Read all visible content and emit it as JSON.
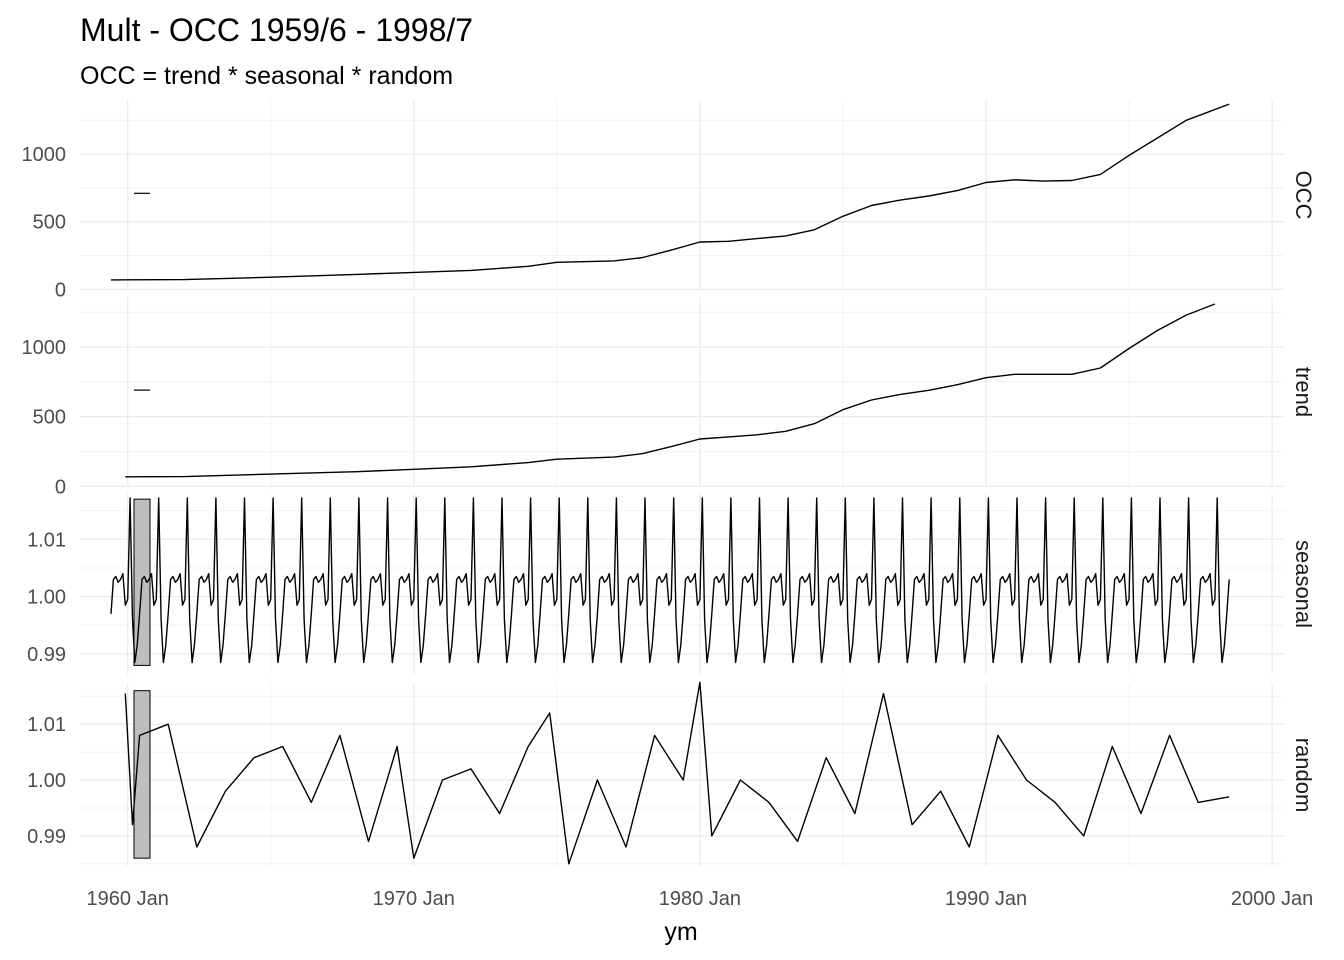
{
  "chart_data": {
    "type": "line",
    "title": "Mult - OCC 1959/6 - 1998/7",
    "subtitle": "OCC = trend * seasonal * random",
    "xlabel": "ym",
    "x_ticks": [
      "1960 Jan",
      "1970 Jan",
      "1980 Jan",
      "1990 Jan",
      "2000 Jan"
    ],
    "xlim": [
      "1958-05",
      "2000-06"
    ],
    "panels": [
      {
        "name": "OCC",
        "ylim": [
          -5,
          1400
        ],
        "y_ticks": [
          {
            "v": 0,
            "label": "0"
          },
          {
            "v": 500,
            "label": "500"
          },
          {
            "v": 1000,
            "label": "1000"
          }
        ],
        "range_bar": [
          700,
          720
        ],
        "points": [
          [
            "1959-06",
            70
          ],
          [
            "1962-01",
            72
          ],
          [
            "1965-01",
            90
          ],
          [
            "1968-01",
            110
          ],
          [
            "1970-01",
            125
          ],
          [
            "1972-01",
            140
          ],
          [
            "1974-01",
            170
          ],
          [
            "1975-01",
            200
          ],
          [
            "1977-01",
            210
          ],
          [
            "1978-01",
            235
          ],
          [
            "1979-01",
            290
          ],
          [
            "1980-01",
            350
          ],
          [
            "1981-01",
            355
          ],
          [
            "1982-01",
            375
          ],
          [
            "1983-01",
            395
          ],
          [
            "1984-01",
            440
          ],
          [
            "1985-01",
            540
          ],
          [
            "1986-01",
            620
          ],
          [
            "1987-01",
            660
          ],
          [
            "1988-01",
            690
          ],
          [
            "1989-01",
            730
          ],
          [
            "1990-01",
            790
          ],
          [
            "1991-01",
            810
          ],
          [
            "1992-01",
            800
          ],
          [
            "1993-01",
            805
          ],
          [
            "1994-01",
            850
          ],
          [
            "1995-01",
            990
          ],
          [
            "1996-01",
            1120
          ],
          [
            "1997-01",
            1250
          ],
          [
            "1998-07",
            1370
          ]
        ]
      },
      {
        "name": "trend",
        "ylim": [
          -5,
          1360
        ],
        "y_ticks": [
          {
            "v": 0,
            "label": "0"
          },
          {
            "v": 500,
            "label": "500"
          },
          {
            "v": 1000,
            "label": "1000"
          }
        ],
        "range_bar": [
          686,
          696
        ],
        "points": [
          [
            "1959-12",
            68
          ],
          [
            "1962-01",
            70
          ],
          [
            "1965-01",
            88
          ],
          [
            "1968-01",
            105
          ],
          [
            "1970-01",
            122
          ],
          [
            "1972-01",
            140
          ],
          [
            "1974-01",
            170
          ],
          [
            "1975-01",
            195
          ],
          [
            "1977-01",
            210
          ],
          [
            "1978-01",
            235
          ],
          [
            "1979-01",
            285
          ],
          [
            "1980-01",
            340
          ],
          [
            "1981-01",
            355
          ],
          [
            "1982-01",
            370
          ],
          [
            "1983-01",
            395
          ],
          [
            "1984-01",
            450
          ],
          [
            "1985-01",
            550
          ],
          [
            "1986-01",
            620
          ],
          [
            "1987-01",
            660
          ],
          [
            "1988-01",
            690
          ],
          [
            "1989-01",
            730
          ],
          [
            "1990-01",
            780
          ],
          [
            "1991-01",
            805
          ],
          [
            "1992-01",
            805
          ],
          [
            "1993-01",
            805
          ],
          [
            "1994-01",
            850
          ],
          [
            "1995-01",
            990
          ],
          [
            "1996-01",
            1120
          ],
          [
            "1997-01",
            1230
          ],
          [
            "1998-01",
            1310
          ]
        ]
      },
      {
        "name": "seasonal",
        "ylim": [
          0.9865,
          1.0179
        ],
        "y_ticks": [
          {
            "v": 0.99,
            "label": "0.99"
          },
          {
            "v": 1.0,
            "label": "1.00"
          },
          {
            "v": 1.01,
            "label": "1.01"
          }
        ],
        "range_bar": [
          0.988,
          1.017
        ],
        "start": "1959-06",
        "end": "1998-07",
        "cycle_by_month": [
          0.9995,
          1.0172,
          0.996,
          0.9885,
          0.9915,
          0.997,
          1.003,
          1.0035,
          1.0025,
          1.003,
          1.004,
          0.9985
        ]
      },
      {
        "name": "random",
        "ylim": [
          0.9846,
          1.0172
        ],
        "y_ticks": [
          {
            "v": 0.99,
            "label": "0.99"
          },
          {
            "v": 1.0,
            "label": "1.00"
          },
          {
            "v": 1.01,
            "label": "1.01"
          }
        ],
        "range_bar": [
          0.986,
          1.016
        ],
        "points": [
          [
            "1959-12",
            1.0155
          ],
          [
            "1960-03",
            0.992
          ],
          [
            "1960-06",
            1.008
          ],
          [
            "1961-06",
            1.01
          ],
          [
            "1962-06",
            0.988
          ],
          [
            "1963-06",
            0.998
          ],
          [
            "1964-06",
            1.004
          ],
          [
            "1965-06",
            1.006
          ],
          [
            "1966-06",
            0.996
          ],
          [
            "1967-06",
            1.008
          ],
          [
            "1968-06",
            0.989
          ],
          [
            "1969-06",
            1.006
          ],
          [
            "1970-01",
            0.986
          ],
          [
            "1971-01",
            1.0
          ],
          [
            "1972-01",
            1.002
          ],
          [
            "1973-01",
            0.994
          ],
          [
            "1974-01",
            1.006
          ],
          [
            "1974-10",
            1.012
          ],
          [
            "1975-06",
            0.985
          ],
          [
            "1976-06",
            1.0
          ],
          [
            "1977-06",
            0.988
          ],
          [
            "1978-06",
            1.008
          ],
          [
            "1979-06",
            1.0
          ],
          [
            "1980-01",
            1.0175
          ],
          [
            "1980-06",
            0.99
          ],
          [
            "1981-06",
            1.0
          ],
          [
            "1982-06",
            0.996
          ],
          [
            "1983-06",
            0.989
          ],
          [
            "1984-06",
            1.004
          ],
          [
            "1985-06",
            0.994
          ],
          [
            "1986-06",
            1.0155
          ],
          [
            "1987-06",
            0.992
          ],
          [
            "1988-06",
            0.998
          ],
          [
            "1989-06",
            0.988
          ],
          [
            "1990-06",
            1.008
          ],
          [
            "1991-06",
            1.0
          ],
          [
            "1992-06",
            0.996
          ],
          [
            "1993-06",
            0.99
          ],
          [
            "1994-06",
            1.006
          ],
          [
            "1995-06",
            0.994
          ],
          [
            "1996-06",
            1.008
          ],
          [
            "1997-06",
            0.996
          ],
          [
            "1998-07",
            0.997
          ]
        ]
      }
    ]
  }
}
